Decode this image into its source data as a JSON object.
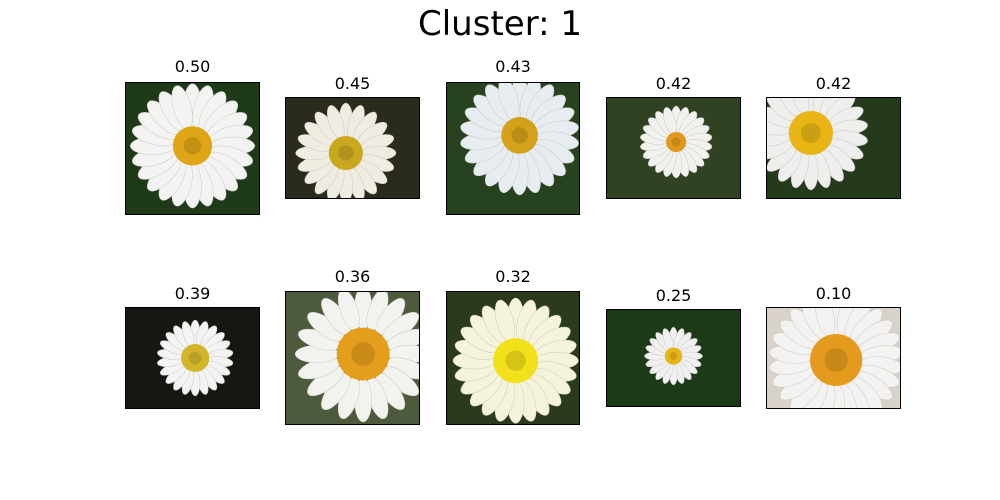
{
  "figure": {
    "title": "Cluster: 1"
  },
  "images": [
    {
      "score": "0.50",
      "petal_color": "#f3f4f2",
      "center_color": "#e0a516",
      "bg_color": "#1f3a19"
    },
    {
      "score": "0.45",
      "petal_color": "#efece2",
      "center_color": "#c9a81e",
      "bg_color": "#2a2a1d"
    },
    {
      "score": "0.43",
      "petal_color": "#e6ecf0",
      "center_color": "#d3a11a",
      "bg_color": "#27421f"
    },
    {
      "score": "0.42",
      "petal_color": "#f1f1ee",
      "center_color": "#e0991a",
      "bg_color": "#304222"
    },
    {
      "score": "0.42",
      "petal_color": "#eeeeec",
      "center_color": "#e8b515",
      "bg_color": "#243a1b"
    },
    {
      "score": "0.39",
      "petal_color": "#f3f3f3",
      "center_color": "#d3b52a",
      "bg_color": "#141712"
    },
    {
      "score": "0.36",
      "petal_color": "#f2f2ee",
      "center_color": "#e59e1c",
      "bg_color": "#4d5a3c"
    },
    {
      "score": "0.32",
      "petal_color": "#f5f3da",
      "center_color": "#f2e01a",
      "bg_color": "#2a3a1b"
    },
    {
      "score": "0.25",
      "petal_color": "#f0f0f0",
      "center_color": "#e6b414",
      "bg_color": "#1d3a18"
    },
    {
      "score": "0.10",
      "petal_color": "#f3f2f0",
      "center_color": "#e49b1d",
      "bg_color": "#d9d2cb"
    }
  ]
}
